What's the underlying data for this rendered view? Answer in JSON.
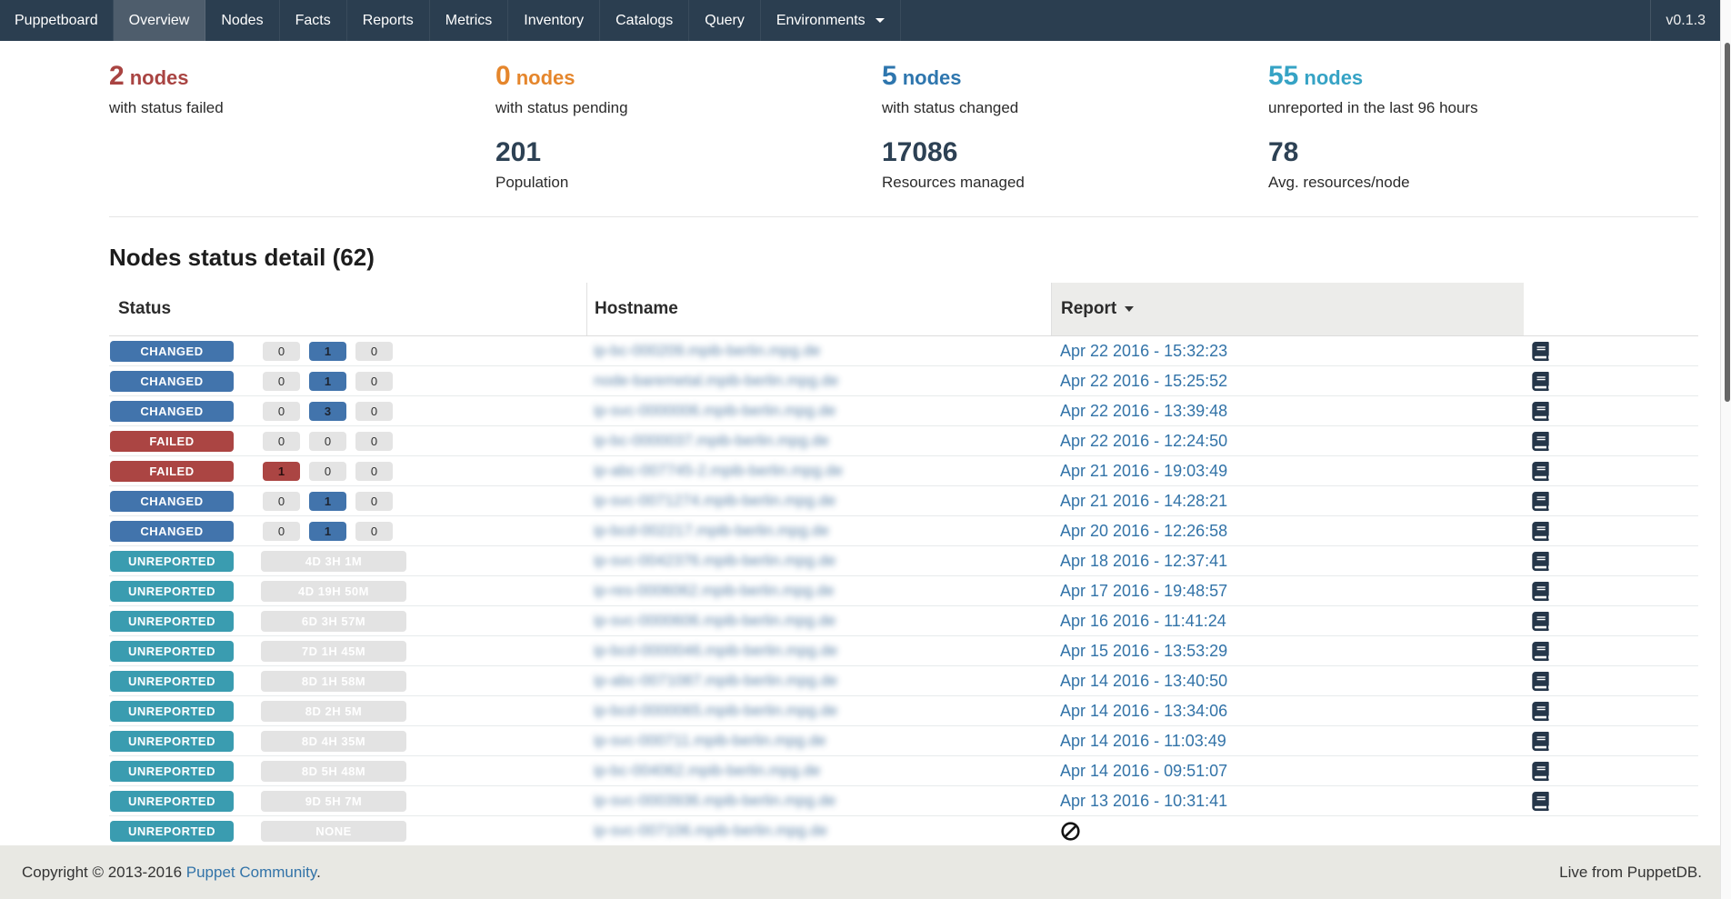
{
  "navbar": {
    "brand": "Puppetboard",
    "items": [
      {
        "label": "Overview",
        "active": true
      },
      {
        "label": "Nodes",
        "active": false
      },
      {
        "label": "Facts",
        "active": false
      },
      {
        "label": "Reports",
        "active": false
      },
      {
        "label": "Metrics",
        "active": false
      },
      {
        "label": "Inventory",
        "active": false
      },
      {
        "label": "Catalogs",
        "active": false
      },
      {
        "label": "Query",
        "active": false
      },
      {
        "label": "Environments",
        "active": false,
        "dropdown": true
      }
    ],
    "version": "v0.1.3"
  },
  "stats": {
    "failed": {
      "value": "2",
      "suffix": "nodes",
      "label": "with status failed",
      "color": "#a94442"
    },
    "pending": {
      "value": "0",
      "suffix": "nodes",
      "label": "with status pending",
      "color": "#e5862c"
    },
    "changed": {
      "value": "5",
      "suffix": "nodes",
      "label": "with status changed",
      "color": "#2e76ae"
    },
    "unreported": {
      "value": "55",
      "suffix": "nodes",
      "label": "unreported in the last 96 hours",
      "color": "#36a3c5"
    },
    "population": {
      "value": "201",
      "label": "Population"
    },
    "resources": {
      "value": "17086",
      "label": "Resources managed"
    },
    "avg_resources": {
      "value": "78",
      "label": "Avg. resources/node"
    }
  },
  "section_title": "Nodes status detail (62)",
  "table": {
    "headers": {
      "status": "Status",
      "hostname": "Hostname",
      "report": "Report"
    },
    "sort_column": "report",
    "sort_direction": "desc",
    "status_colors": {
      "changed": "#4274ac",
      "failed": "#ab4543",
      "unreported": "#3a9cb0"
    },
    "rows": [
      {
        "status": "CHANGED",
        "status_type": "changed",
        "counts": [
          {
            "value": "0",
            "highlight": false
          },
          {
            "value": "1",
            "highlight": true
          },
          {
            "value": "0",
            "highlight": false
          }
        ],
        "hostname": "ip-bc-000209.mpib-berlin.mpg.de",
        "report": "Apr 22 2016 - 15:32:23"
      },
      {
        "status": "CHANGED",
        "status_type": "changed",
        "counts": [
          {
            "value": "0",
            "highlight": false
          },
          {
            "value": "1",
            "highlight": true
          },
          {
            "value": "0",
            "highlight": false
          }
        ],
        "hostname": "node-baremetal.mpib-berlin.mpg.de",
        "report": "Apr 22 2016 - 15:25:52"
      },
      {
        "status": "CHANGED",
        "status_type": "changed",
        "counts": [
          {
            "value": "0",
            "highlight": false
          },
          {
            "value": "3",
            "highlight": true
          },
          {
            "value": "0",
            "highlight": false
          }
        ],
        "hostname": "ip-svc-0000006.mpib-berlin.mpg.de",
        "report": "Apr 22 2016 - 13:39:48"
      },
      {
        "status": "FAILED",
        "status_type": "failed",
        "counts": [
          {
            "value": "0",
            "highlight": false
          },
          {
            "value": "0",
            "highlight": false
          },
          {
            "value": "0",
            "highlight": false
          }
        ],
        "hostname": "ip-bc-0000037.mpib-berlin.mpg.de",
        "report": "Apr 22 2016 - 12:24:50"
      },
      {
        "status": "FAILED",
        "status_type": "failed",
        "counts": [
          {
            "value": "1",
            "highlight": true
          },
          {
            "value": "0",
            "highlight": false
          },
          {
            "value": "0",
            "highlight": false
          }
        ],
        "hostname": "ip-abc-007745-2.mpib-berlin.mpg.de",
        "report": "Apr 21 2016 - 19:03:49"
      },
      {
        "status": "CHANGED",
        "status_type": "changed",
        "counts": [
          {
            "value": "0",
            "highlight": false
          },
          {
            "value": "1",
            "highlight": true
          },
          {
            "value": "0",
            "highlight": false
          }
        ],
        "hostname": "ip-svc-0071274.mpib-berlin.mpg.de",
        "report": "Apr 21 2016 - 14:28:21"
      },
      {
        "status": "CHANGED",
        "status_type": "changed",
        "counts": [
          {
            "value": "0",
            "highlight": false
          },
          {
            "value": "1",
            "highlight": true
          },
          {
            "value": "0",
            "highlight": false
          }
        ],
        "hostname": "ip-bcd-002217.mpib-berlin.mpg.de",
        "report": "Apr 20 2016 - 12:26:58"
      },
      {
        "status": "UNREPORTED",
        "status_type": "unreported",
        "duration": "4D 3H 1M",
        "hostname": "ip-svc-0042376.mpib-berlin.mpg.de",
        "report": "Apr 18 2016 - 12:37:41"
      },
      {
        "status": "UNREPORTED",
        "status_type": "unreported",
        "duration": "4D 19H 50M",
        "hostname": "ip-res-0006062.mpib-berlin.mpg.de",
        "report": "Apr 17 2016 - 19:48:57"
      },
      {
        "status": "UNREPORTED",
        "status_type": "unreported",
        "duration": "6D 3H 57M",
        "hostname": "ip-svc-0000606.mpib-berlin.mpg.de",
        "report": "Apr 16 2016 - 11:41:24"
      },
      {
        "status": "UNREPORTED",
        "status_type": "unreported",
        "duration": "7D 1H 45M",
        "hostname": "ip-bcd-0000046.mpib-berlin.mpg.de",
        "report": "Apr 15 2016 - 13:53:29"
      },
      {
        "status": "UNREPORTED",
        "status_type": "unreported",
        "duration": "8D 1H 58M",
        "hostname": "ip-abc-0071087.mpib-berlin.mpg.de",
        "report": "Apr 14 2016 - 13:40:50"
      },
      {
        "status": "UNREPORTED",
        "status_type": "unreported",
        "duration": "8D 2H 5M",
        "hostname": "ip-bcd-0000065.mpib-berlin.mpg.de",
        "report": "Apr 14 2016 - 13:34:06"
      },
      {
        "status": "UNREPORTED",
        "status_type": "unreported",
        "duration": "8D 4H 35M",
        "hostname": "ip-svc-000711.mpib-berlin.mpg.de",
        "report": "Apr 14 2016 - 11:03:49"
      },
      {
        "status": "UNREPORTED",
        "status_type": "unreported",
        "duration": "8D 5H 48M",
        "hostname": "ip-bc-004062.mpib-berlin.mpg.de",
        "report": "Apr 14 2016 - 09:51:07"
      },
      {
        "status": "UNREPORTED",
        "status_type": "unreported",
        "duration": "9D 5H 7M",
        "hostname": "ip-svc-0003936.mpib-berlin.mpg.de",
        "report": "Apr 13 2016 - 10:31:41"
      },
      {
        "status": "UNREPORTED",
        "status_type": "unreported",
        "duration": "NONE",
        "hostname": "ip-svc-007106.mpib-berlin.mpg.de",
        "report": null
      }
    ]
  },
  "footer": {
    "copyright": "Copyright © 2013-2016",
    "community_link": "Puppet Community",
    "suffix": ".",
    "live": "Live from PuppetDB."
  }
}
